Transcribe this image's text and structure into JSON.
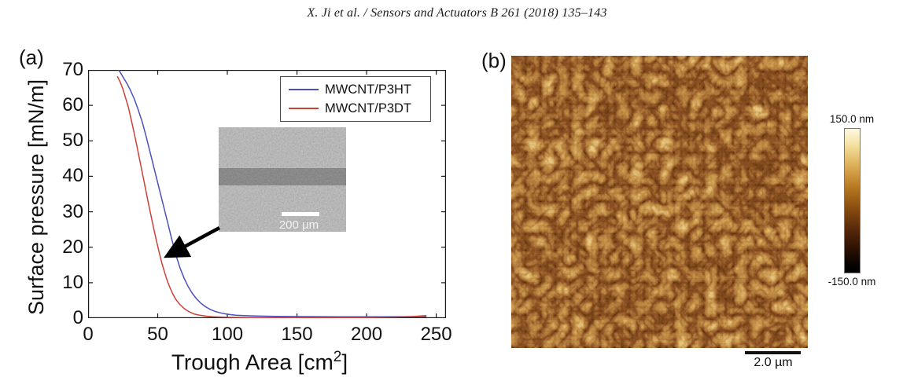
{
  "header": {
    "citation": "X. Ji et al. / Sensors and Actuators B 261 (2018) 135–143"
  },
  "panels": {
    "a": {
      "label": "(a)",
      "inset": {
        "scale_bar_label": "200 µm"
      }
    },
    "b": {
      "label": "(b)",
      "scale_bar_label": "2.0 µm",
      "colorbar": {
        "max_label": "150.0 nm",
        "min_label": "-150.0 nm"
      }
    }
  },
  "chart_data": {
    "type": "line",
    "title": "",
    "xlabel": "Trough Area [cm^2]",
    "xlabel_base": "Trough Area [cm",
    "xlabel_exp": "2",
    "xlabel_close": "]",
    "ylabel": "Surface pressure [mN/m]",
    "xlim": [
      0,
      257
    ],
    "ylim": [
      0,
      70
    ],
    "xticks": [
      0,
      50,
      100,
      150,
      200,
      250
    ],
    "yticks": [
      0,
      10,
      20,
      30,
      40,
      50,
      60,
      70
    ],
    "grid": false,
    "legend_position": "top-right",
    "axis_color": "#1a1a1a",
    "series": [
      {
        "name": "MWCNT/P3HT",
        "color": "#4a50bc",
        "points": [
          [
            22,
            70
          ],
          [
            24,
            68.7
          ],
          [
            26,
            67.4
          ],
          [
            28,
            66.1
          ],
          [
            30,
            64.6
          ],
          [
            33,
            62
          ],
          [
            36,
            58.8
          ],
          [
            39,
            55.2
          ],
          [
            42,
            50.7
          ],
          [
            45,
            46
          ],
          [
            48,
            41.3
          ],
          [
            51,
            36.6
          ],
          [
            54,
            31.9
          ],
          [
            57,
            27.2
          ],
          [
            60,
            22.4
          ],
          [
            63,
            17.9
          ],
          [
            66,
            14.2
          ],
          [
            69,
            11.2
          ],
          [
            72,
            8.8
          ],
          [
            75,
            6.9
          ],
          [
            78,
            5.4
          ],
          [
            81,
            4.2
          ],
          [
            84,
            3.3
          ],
          [
            88,
            2.4
          ],
          [
            92,
            1.8
          ],
          [
            96,
            1.4
          ],
          [
            100,
            1.1
          ],
          [
            106,
            0.85
          ],
          [
            112,
            0.7
          ],
          [
            120,
            0.6
          ],
          [
            135,
            0.5
          ],
          [
            155,
            0.45
          ],
          [
            180,
            0.4
          ],
          [
            210,
            0.4
          ],
          [
            243,
            0.45
          ]
        ]
      },
      {
        "name": "MWCNT/P3DT",
        "color": "#cc4038",
        "points": [
          [
            21,
            68.2
          ],
          [
            23,
            66.6
          ],
          [
            25,
            64.6
          ],
          [
            27,
            62
          ],
          [
            29,
            59.4
          ],
          [
            31,
            55.9
          ],
          [
            33,
            52.4
          ],
          [
            35,
            48.6
          ],
          [
            37,
            44.7
          ],
          [
            39,
            40.9
          ],
          [
            41,
            36.9
          ],
          [
            43,
            33
          ],
          [
            45,
            29.2
          ],
          [
            47,
            25.5
          ],
          [
            49,
            21.9
          ],
          [
            51,
            18.6
          ],
          [
            53,
            15.5
          ],
          [
            55,
            12.8
          ],
          [
            57,
            10.4
          ],
          [
            59,
            8.4
          ],
          [
            61,
            6.7
          ],
          [
            63,
            5.3
          ],
          [
            66,
            3.8
          ],
          [
            69,
            2.7
          ],
          [
            72,
            1.9
          ],
          [
            76,
            1.2
          ],
          [
            80,
            0.85
          ],
          [
            85,
            0.55
          ],
          [
            90,
            0.4
          ],
          [
            100,
            0.25
          ],
          [
            115,
            0.15
          ],
          [
            135,
            0.1
          ],
          [
            160,
            0.1
          ],
          [
            185,
            0.15
          ],
          [
            205,
            0.2
          ],
          [
            220,
            0.3
          ],
          [
            232,
            0.45
          ],
          [
            243,
            0.7
          ]
        ]
      }
    ]
  }
}
